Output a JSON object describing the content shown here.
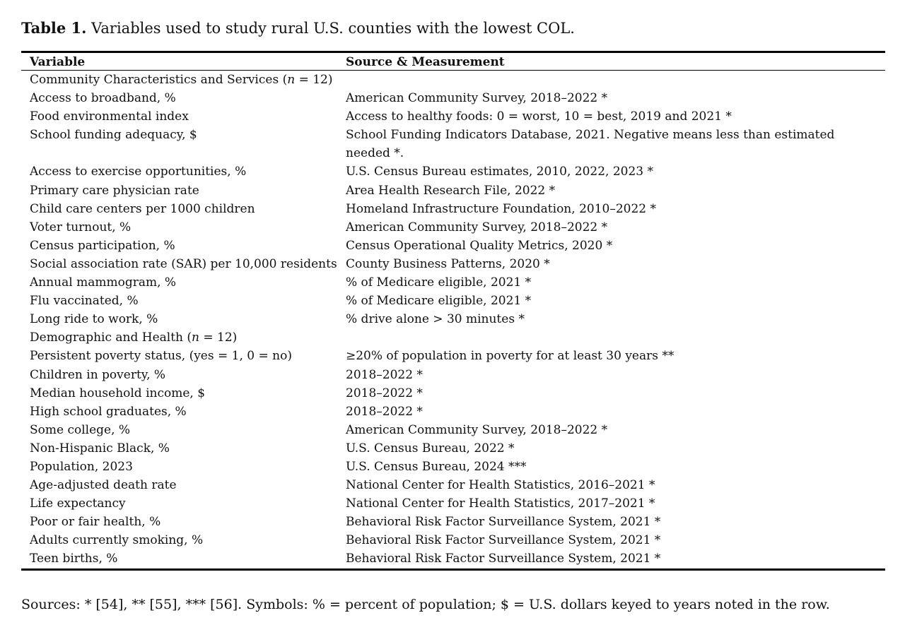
{
  "title": {
    "label": "Table 1.",
    "text": "Variables used to study rural U.S. counties with the lowest COL."
  },
  "table": {
    "headers": [
      "Variable",
      "Source & Measurement"
    ],
    "sections": [
      {
        "label_before": "Community Characteristics and Services (",
        "label_italic": "n",
        "label_after": " = 12)",
        "rows": [
          [
            "Access to broadband, %",
            "American Community Survey, 2018–2022 *"
          ],
          [
            "Food environmental index",
            "Access to healthy foods: 0 = worst, 10 = best, 2019 and 2021 *"
          ],
          [
            "School funding adequacy, $",
            "School Funding Indicators Database, 2021. Negative means less than estimated needed *."
          ],
          [
            "Access to exercise opportunities, %",
            "U.S. Census Bureau estimates, 2010, 2022, 2023 *"
          ],
          [
            "Primary care physician rate",
            "Area Health Research File, 2022 *"
          ],
          [
            "Child care centers per 1000 children",
            "Homeland Infrastructure Foundation, 2010–2022 *"
          ],
          [
            "Voter turnout, %",
            "American Community Survey, 2018–2022 *"
          ],
          [
            "Census participation, %",
            "Census Operational Quality Metrics, 2020 *"
          ],
          [
            "Social association rate (SAR) per 10,000 residents",
            "County Business Patterns, 2020 *"
          ],
          [
            "Annual mammogram, %",
            "% of Medicare eligible, 2021 *"
          ],
          [
            "Flu vaccinated, %",
            "% of Medicare eligible, 2021 *"
          ],
          [
            "Long ride to work, %",
            "% drive alone > 30 minutes *"
          ]
        ]
      },
      {
        "label_before": "Demographic and Health (",
        "label_italic": "n",
        "label_after": " = 12)",
        "rows": [
          [
            "Persistent poverty status, (yes = 1, 0 = no)",
            "≥20% of population in poverty for at least 30 years **"
          ],
          [
            "Children in poverty, %",
            "2018–2022 *"
          ],
          [
            "Median household income, $",
            "2018–2022 *"
          ],
          [
            "High school graduates, %",
            "2018–2022 *"
          ],
          [
            "Some college, %",
            "American Community Survey, 2018–2022 *"
          ],
          [
            "Non-Hispanic Black, %",
            "U.S. Census Bureau, 2022 *"
          ],
          [
            "Population, 2023",
            "U.S. Census Bureau, 2024 ***"
          ],
          [
            "Age-adjusted death rate",
            "National Center for Health Statistics, 2016–2021 *"
          ],
          [
            "Life expectancy",
            "National Center for Health Statistics, 2017–2021 *"
          ],
          [
            "Poor or fair health, %",
            "Behavioral Risk Factor Surveillance System, 2021 *"
          ],
          [
            "Adults currently smoking, %",
            "Behavioral Risk Factor Surveillance System, 2021 *"
          ],
          [
            "Teen births, %",
            "Behavioral Risk Factor Surveillance System, 2021 *"
          ]
        ]
      }
    ]
  },
  "footer": "Sources: * [54], ** [55], *** [56]. Symbols: % = percent of population; $ = U.S. dollars keyed to years noted in the row."
}
